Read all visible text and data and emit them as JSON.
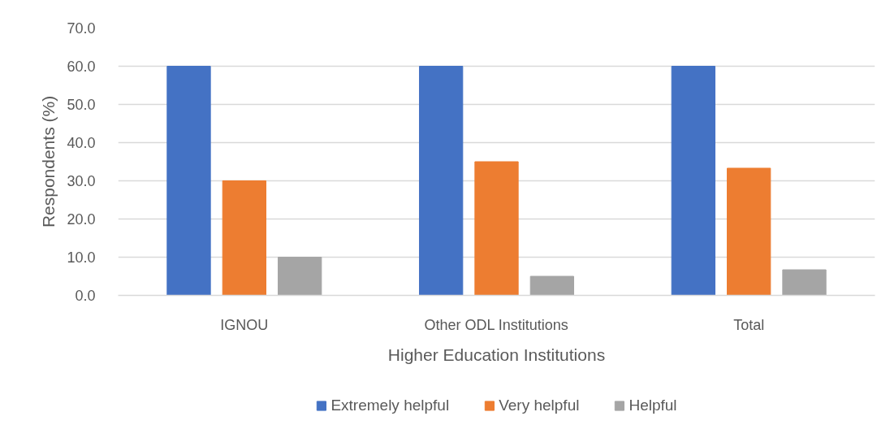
{
  "chart_data": {
    "type": "bar",
    "xlabel": "Higher Education Institutions",
    "ylabel": "Respondents (%)",
    "categories": [
      "IGNOU",
      "Other ODL Institutions",
      "Total"
    ],
    "series": [
      {
        "name": "Extremely helpful",
        "color": "#4472c4",
        "values": [
          60.0,
          60.0,
          60.0
        ]
      },
      {
        "name": "Very helpful",
        "color": "#ed7d31",
        "values": [
          30.0,
          35.0,
          33.3
        ]
      },
      {
        "name": "Helpful",
        "color": "#a5a5a5",
        "values": [
          10.0,
          5.0,
          6.7
        ]
      }
    ],
    "ylim": [
      0,
      70
    ],
    "yticks": [
      {
        "value": 0,
        "label": "0.0"
      },
      {
        "value": 10,
        "label": "10.0"
      },
      {
        "value": 20,
        "label": "20.0"
      },
      {
        "value": 30,
        "label": "30.0"
      },
      {
        "value": 40,
        "label": "40.0"
      },
      {
        "value": 50,
        "label": "50.0"
      },
      {
        "value": 60,
        "label": "60.0"
      },
      {
        "value": 70,
        "label": "70.0"
      }
    ],
    "grid": "y",
    "legend": "bottom"
  }
}
